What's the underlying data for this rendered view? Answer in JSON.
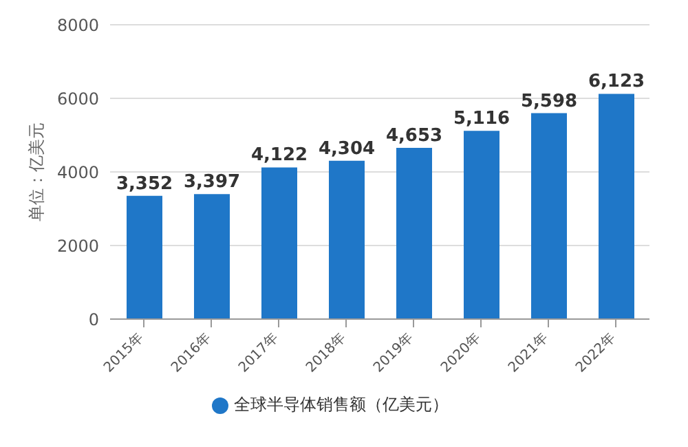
{
  "chart_data": {
    "type": "bar",
    "ylabel": "单位：亿美元",
    "categories": [
      "2015年",
      "2016年",
      "2017年",
      "2018年",
      "2019年",
      "2020年",
      "2021年",
      "2022年"
    ],
    "series": [
      {
        "name": "全球半导体销售额（亿美元）",
        "color": "#1f77c8",
        "values": [
          3352,
          3397,
          4122,
          4304,
          4653,
          5116,
          5598,
          6123
        ],
        "value_labels": [
          "3,352",
          "3,397",
          "4,122",
          "4,304",
          "4,653",
          "5,116",
          "5,598",
          "6,123"
        ]
      }
    ],
    "ylim": [
      0,
      8000
    ],
    "yticks": [
      0,
      2000,
      4000,
      6000,
      8000
    ],
    "grid": "y",
    "legend": "bottom",
    "marker": "circle"
  }
}
